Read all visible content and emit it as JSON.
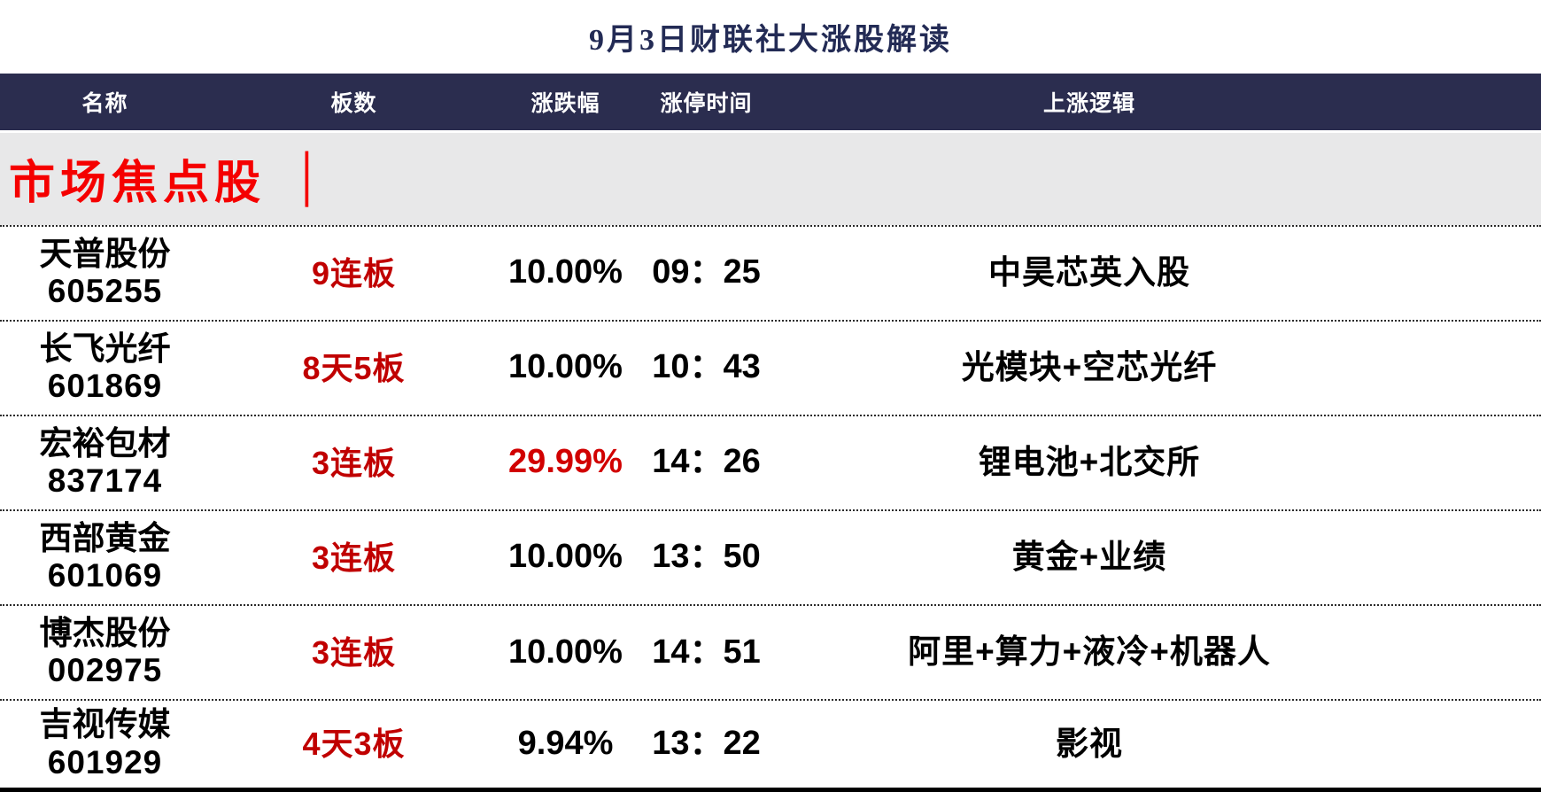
{
  "title": "9月3日财联社大涨股解读",
  "columns": {
    "name": "名称",
    "boards": "板数",
    "change": "涨跌幅",
    "limit_time": "涨停时间",
    "logic": "上涨逻辑"
  },
  "section": {
    "label": "市场焦点股",
    "divider": "│"
  },
  "colors": {
    "header_bg": "#2b2d4f",
    "title_navy": "#232b55",
    "section_red": "#f50000",
    "board_red": "#c00000",
    "change_red": "#d10000",
    "section_bg": "#e8e8e9"
  },
  "rows": [
    {
      "name": "天普股份",
      "code": "605255",
      "boards": "9连板",
      "change": "10.00%",
      "time": "09：25",
      "logic": "中昊芯英入股"
    },
    {
      "name": "长飞光纤",
      "code": "601869",
      "boards": "8天5板",
      "change": "10.00%",
      "time": "10：43",
      "logic": "光模块+空芯光纤"
    },
    {
      "name": "宏裕包材",
      "code": "837174",
      "boards": "3连板",
      "change": "29.99%",
      "time": "14：26",
      "logic": "锂电池+北交所"
    },
    {
      "name": "西部黄金",
      "code": "601069",
      "boards": "3连板",
      "change": "10.00%",
      "time": "13：50",
      "logic": "黄金+业绩"
    },
    {
      "name": "博杰股份",
      "code": "002975",
      "boards": "3连板",
      "change": "10.00%",
      "time": "14：51",
      "logic": "阿里+算力+液冷+机器人"
    },
    {
      "name": "吉视传媒",
      "code": "601929",
      "boards": "4天3板",
      "change": "9.94%",
      "time": "13：22",
      "logic": "影视"
    }
  ]
}
